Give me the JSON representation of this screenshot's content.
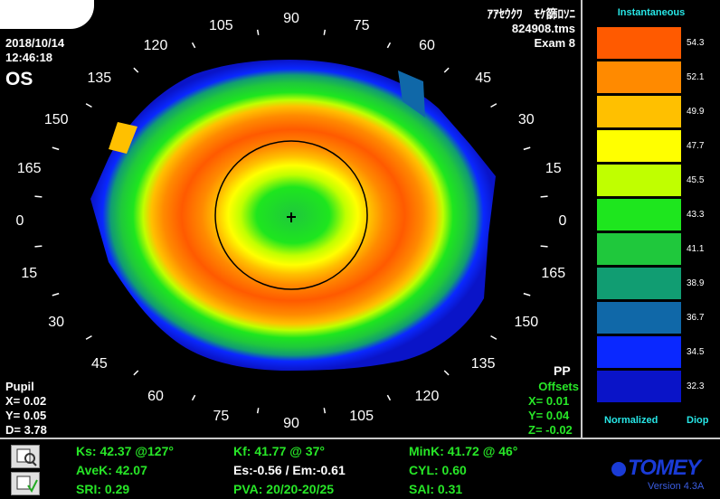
{
  "header": {
    "date": "2018/10/14",
    "time": "12:46:18",
    "eye": "OS",
    "patient_name": "ｱｱｾｳｸﾜ　ﾓｹ篩ﾛｿﾆ",
    "file_name": "824908.tms",
    "exam": "Exam 8"
  },
  "angles": {
    "top": [
      "105",
      "90",
      "75",
      "120",
      "60",
      "135",
      "45",
      "150",
      "30",
      "165",
      "15"
    ],
    "left_0": "0",
    "right_0": "0",
    "bottom": [
      "15",
      "165",
      "30",
      "150",
      "45",
      "135",
      "60",
      "120",
      "75",
      "90",
      "105"
    ]
  },
  "pupil": {
    "title": "Pupil",
    "x": "X=  0.02",
    "y": "Y=  0.05",
    "d": "D=  3.78"
  },
  "offsets": {
    "pp": "PP",
    "title": "Offsets",
    "x": "X=  0.01",
    "y": "Y=  0.04",
    "z": "Z= -0.02"
  },
  "legend": {
    "title": "Instantaneous",
    "footer_left": "Normalized",
    "footer_right": "Diop",
    "levels": [
      {
        "value": "54.3",
        "color": "#ff5a00"
      },
      {
        "value": "52.1",
        "color": "#ff8a00"
      },
      {
        "value": "49.9",
        "color": "#ffc000"
      },
      {
        "value": "47.7",
        "color": "#ffff00"
      },
      {
        "value": "45.5",
        "color": "#c0ff00"
      },
      {
        "value": "43.3",
        "color": "#1ee61e"
      },
      {
        "value": "41.1",
        "color": "#1fc83c"
      },
      {
        "value": "38.9",
        "color": "#119d72"
      },
      {
        "value": "36.7",
        "color": "#1068a8"
      },
      {
        "value": "34.5",
        "color": "#0a28ff"
      },
      {
        "value": "32.3",
        "color": "#0a14c8"
      }
    ]
  },
  "stats": {
    "ks": "Ks: 42.37 @127°",
    "kf": "Kf: 41.77 @ 37°",
    "mink": "MinK: 41.72 @ 46°",
    "avek": "AveK: 42.07",
    "es_em": "Es:-0.56 / Em:-0.61",
    "cyl": "CYL:  0.60",
    "sri": "SRI: 0.29",
    "pva": "PVA: 20/20-20/25",
    "sai": "SAI: 0.31"
  },
  "brand": {
    "logo": "TOMEY",
    "version": "Version 4.3A"
  },
  "icons": [
    "print-preview-icon",
    "save-icon"
  ]
}
